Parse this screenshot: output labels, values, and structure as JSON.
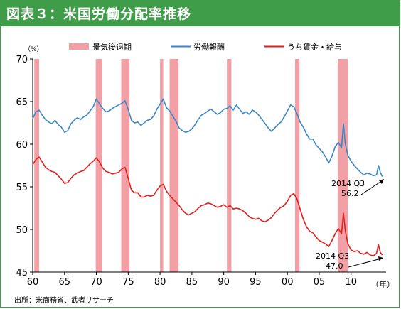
{
  "header": {
    "title": "図表３：米国労働分配率推移"
  },
  "source": "出所：米商務省、武者リサーチ",
  "chart_data": {
    "type": "line",
    "unit": "（%）",
    "x_unit": "（年）",
    "ylim": [
      45,
      70
    ],
    "yticks": [
      45,
      50,
      55,
      60,
      65,
      70
    ],
    "xlim": [
      1960,
      2015.5
    ],
    "xtick_labels": [
      "60",
      "65",
      "70",
      "75",
      "80",
      "85",
      "90",
      "95",
      "00",
      "05",
      "10"
    ],
    "xtick_years": [
      1960,
      1965,
      1970,
      1975,
      1980,
      1985,
      1990,
      1995,
      2000,
      2005,
      2010
    ],
    "grid": false,
    "legend_position": "top",
    "legend": [
      "景気後退期",
      "労働報酬",
      "うち賃金・給与"
    ],
    "colors": {
      "recession": "#f2a0a6",
      "labor": "#3a86c8",
      "wages": "#e0201d",
      "header": "#3f9d49"
    },
    "recessions": [
      [
        1960.25,
        1961.0
      ],
      [
        1969.9,
        1970.9
      ],
      [
        1973.9,
        1975.2
      ],
      [
        1980.0,
        1980.5
      ],
      [
        1981.5,
        1982.9
      ],
      [
        1990.5,
        1991.2
      ],
      [
        2001.2,
        2001.9
      ],
      [
        2007.9,
        2009.5
      ]
    ],
    "series": [
      {
        "name": "労働報酬",
        "points": [
          [
            1960.0,
            63.0
          ],
          [
            1960.5,
            63.8
          ],
          [
            1961.0,
            64.0
          ],
          [
            1961.5,
            63.4
          ],
          [
            1962.0,
            62.9
          ],
          [
            1962.5,
            62.6
          ],
          [
            1963.0,
            62.4
          ],
          [
            1963.5,
            62.8
          ],
          [
            1964.0,
            62.3
          ],
          [
            1964.5,
            62.0
          ],
          [
            1965.0,
            61.4
          ],
          [
            1965.5,
            61.6
          ],
          [
            1966.0,
            62.4
          ],
          [
            1966.5,
            62.8
          ],
          [
            1967.0,
            63.1
          ],
          [
            1967.5,
            62.9
          ],
          [
            1968.0,
            63.2
          ],
          [
            1968.5,
            63.4
          ],
          [
            1969.0,
            63.9
          ],
          [
            1969.5,
            64.4
          ],
          [
            1970.0,
            65.3
          ],
          [
            1970.5,
            64.7
          ],
          [
            1971.0,
            64.2
          ],
          [
            1971.5,
            63.8
          ],
          [
            1972.0,
            63.9
          ],
          [
            1972.5,
            64.2
          ],
          [
            1973.0,
            64.4
          ],
          [
            1973.5,
            64.6
          ],
          [
            1974.0,
            64.8
          ],
          [
            1974.5,
            65.1
          ],
          [
            1975.0,
            64.1
          ],
          [
            1975.5,
            62.8
          ],
          [
            1976.0,
            62.5
          ],
          [
            1976.5,
            62.6
          ],
          [
            1977.0,
            62.2
          ],
          [
            1977.5,
            62.5
          ],
          [
            1978.0,
            62.8
          ],
          [
            1978.5,
            62.9
          ],
          [
            1979.0,
            63.3
          ],
          [
            1979.5,
            64.1
          ],
          [
            1980.0,
            64.7
          ],
          [
            1980.5,
            65.3
          ],
          [
            1981.0,
            64.3
          ],
          [
            1981.5,
            63.9
          ],
          [
            1982.0,
            63.3
          ],
          [
            1982.5,
            62.7
          ],
          [
            1983.0,
            61.9
          ],
          [
            1983.5,
            61.6
          ],
          [
            1984.0,
            61.4
          ],
          [
            1984.5,
            61.5
          ],
          [
            1985.0,
            61.8
          ],
          [
            1985.5,
            62.3
          ],
          [
            1986.0,
            62.9
          ],
          [
            1986.5,
            63.4
          ],
          [
            1987.0,
            63.6
          ],
          [
            1987.5,
            63.9
          ],
          [
            1988.0,
            64.1
          ],
          [
            1988.5,
            63.8
          ],
          [
            1989.0,
            63.5
          ],
          [
            1989.5,
            63.7
          ],
          [
            1990.0,
            64.1
          ],
          [
            1990.5,
            64.2
          ],
          [
            1991.0,
            64.5
          ],
          [
            1991.5,
            64.0
          ],
          [
            1992.0,
            64.6
          ],
          [
            1992.5,
            64.1
          ],
          [
            1993.0,
            63.6
          ],
          [
            1993.5,
            63.8
          ],
          [
            1994.0,
            63.5
          ],
          [
            1994.5,
            64.0
          ],
          [
            1995.0,
            63.8
          ],
          [
            1995.5,
            63.4
          ],
          [
            1996.0,
            62.9
          ],
          [
            1996.5,
            62.4
          ],
          [
            1997.0,
            61.9
          ],
          [
            1997.5,
            61.5
          ],
          [
            1998.0,
            61.9
          ],
          [
            1998.5,
            62.3
          ],
          [
            1999.0,
            62.6
          ],
          [
            1999.5,
            63.2
          ],
          [
            2000.0,
            63.9
          ],
          [
            2000.5,
            64.6
          ],
          [
            2001.0,
            64.4
          ],
          [
            2001.5,
            63.6
          ],
          [
            2002.0,
            62.6
          ],
          [
            2002.5,
            62.0
          ],
          [
            2003.0,
            61.2
          ],
          [
            2003.5,
            60.6
          ],
          [
            2004.0,
            60.6
          ],
          [
            2004.5,
            59.9
          ],
          [
            2005.0,
            59.5
          ],
          [
            2005.5,
            59.1
          ],
          [
            2006.0,
            58.5
          ],
          [
            2006.5,
            57.8
          ],
          [
            2007.0,
            58.6
          ],
          [
            2007.5,
            59.7
          ],
          [
            2008.0,
            60.2
          ],
          [
            2008.5,
            59.6
          ],
          [
            2008.8,
            62.4
          ],
          [
            2009.1,
            60.0
          ],
          [
            2009.5,
            58.7
          ],
          [
            2010.0,
            58.0
          ],
          [
            2010.5,
            57.5
          ],
          [
            2011.0,
            57.1
          ],
          [
            2011.5,
            56.7
          ],
          [
            2012.0,
            56.4
          ],
          [
            2012.5,
            56.6
          ],
          [
            2013.0,
            56.5
          ],
          [
            2013.5,
            56.3
          ],
          [
            2014.0,
            56.4
          ],
          [
            2014.3,
            57.5
          ],
          [
            2014.6,
            56.7
          ],
          [
            2014.9,
            56.2
          ]
        ]
      },
      {
        "name": "うち賃金・給与",
        "points": [
          [
            1960.0,
            57.6
          ],
          [
            1960.5,
            58.2
          ],
          [
            1961.0,
            58.5
          ],
          [
            1961.5,
            57.9
          ],
          [
            1962.0,
            57.3
          ],
          [
            1962.5,
            57.0
          ],
          [
            1963.0,
            56.8
          ],
          [
            1963.5,
            56.7
          ],
          [
            1964.0,
            56.3
          ],
          [
            1964.5,
            55.9
          ],
          [
            1965.0,
            55.4
          ],
          [
            1965.5,
            55.5
          ],
          [
            1966.0,
            56.0
          ],
          [
            1966.5,
            56.4
          ],
          [
            1967.0,
            56.6
          ],
          [
            1967.5,
            56.8
          ],
          [
            1968.0,
            56.9
          ],
          [
            1968.5,
            57.3
          ],
          [
            1969.0,
            57.7
          ],
          [
            1969.5,
            58.0
          ],
          [
            1970.0,
            58.4
          ],
          [
            1970.5,
            57.9
          ],
          [
            1971.0,
            57.2
          ],
          [
            1971.5,
            56.8
          ],
          [
            1972.0,
            56.7
          ],
          [
            1972.5,
            56.5
          ],
          [
            1973.0,
            56.6
          ],
          [
            1973.5,
            56.7
          ],
          [
            1974.0,
            57.1
          ],
          [
            1974.5,
            57.3
          ],
          [
            1975.0,
            56.0
          ],
          [
            1975.5,
            54.6
          ],
          [
            1976.0,
            54.3
          ],
          [
            1976.5,
            54.3
          ],
          [
            1977.0,
            53.8
          ],
          [
            1977.5,
            53.8
          ],
          [
            1978.0,
            54.0
          ],
          [
            1978.5,
            53.9
          ],
          [
            1979.0,
            54.0
          ],
          [
            1979.5,
            54.6
          ],
          [
            1980.0,
            55.1
          ],
          [
            1980.5,
            55.3
          ],
          [
            1981.0,
            54.5
          ],
          [
            1981.5,
            54.0
          ],
          [
            1982.0,
            53.6
          ],
          [
            1982.5,
            53.2
          ],
          [
            1983.0,
            52.8
          ],
          [
            1983.5,
            52.3
          ],
          [
            1984.0,
            51.9
          ],
          [
            1984.5,
            51.7
          ],
          [
            1985.0,
            51.9
          ],
          [
            1985.5,
            52.1
          ],
          [
            1986.0,
            52.5
          ],
          [
            1986.5,
            52.8
          ],
          [
            1987.0,
            52.9
          ],
          [
            1987.5,
            53.1
          ],
          [
            1988.0,
            53.0
          ],
          [
            1988.5,
            52.8
          ],
          [
            1989.0,
            52.6
          ],
          [
            1989.5,
            52.7
          ],
          [
            1990.0,
            52.9
          ],
          [
            1990.5,
            52.6
          ],
          [
            1991.0,
            52.8
          ],
          [
            1991.5,
            52.4
          ],
          [
            1992.0,
            52.5
          ],
          [
            1992.5,
            52.4
          ],
          [
            1993.0,
            52.2
          ],
          [
            1993.5,
            51.9
          ],
          [
            1994.0,
            51.5
          ],
          [
            1994.5,
            51.3
          ],
          [
            1995.0,
            51.2
          ],
          [
            1995.5,
            51.3
          ],
          [
            1996.0,
            51.0
          ],
          [
            1996.5,
            50.9
          ],
          [
            1997.0,
            51.1
          ],
          [
            1997.5,
            51.4
          ],
          [
            1998.0,
            51.9
          ],
          [
            1998.5,
            52.3
          ],
          [
            1999.0,
            52.6
          ],
          [
            1999.5,
            52.8
          ],
          [
            2000.0,
            53.3
          ],
          [
            2000.5,
            54.0
          ],
          [
            2001.0,
            54.2
          ],
          [
            2001.5,
            53.6
          ],
          [
            2002.0,
            52.4
          ],
          [
            2002.5,
            51.2
          ],
          [
            2003.0,
            50.3
          ],
          [
            2003.5,
            49.8
          ],
          [
            2004.0,
            49.6
          ],
          [
            2004.5,
            49.1
          ],
          [
            2005.0,
            48.7
          ],
          [
            2005.5,
            48.5
          ],
          [
            2006.0,
            48.3
          ],
          [
            2006.5,
            48.0
          ],
          [
            2007.0,
            48.7
          ],
          [
            2007.5,
            49.5
          ],
          [
            2008.0,
            50.1
          ],
          [
            2008.5,
            49.5
          ],
          [
            2008.8,
            51.9
          ],
          [
            2009.1,
            49.8
          ],
          [
            2009.5,
            48.3
          ],
          [
            2010.0,
            47.6
          ],
          [
            2010.5,
            47.4
          ],
          [
            2011.0,
            47.5
          ],
          [
            2011.5,
            47.2
          ],
          [
            2012.0,
            47.1
          ],
          [
            2012.5,
            47.3
          ],
          [
            2013.0,
            47.0
          ],
          [
            2013.5,
            46.9
          ],
          [
            2014.0,
            47.2
          ],
          [
            2014.3,
            48.2
          ],
          [
            2014.6,
            47.3
          ],
          [
            2014.9,
            47.0
          ]
        ]
      }
    ],
    "annotations": [
      {
        "text": "2014 Q3",
        "value": "56.2"
      },
      {
        "text": "2014 Q3",
        "value": "47.0"
      }
    ]
  }
}
